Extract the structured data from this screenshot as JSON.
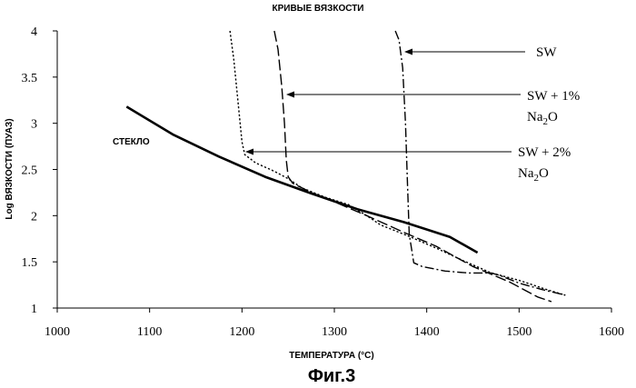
{
  "chart_data": {
    "type": "line",
    "title": "КРИВЫЕ ВЯЗКОСТИ",
    "xlabel": "ТЕМПЕРАТУРА (°C)",
    "ylabel": "Log ВЯЗКОСТИ (ПУАЗ)",
    "caption": "Фиг.3",
    "xlim": [
      1000,
      1600
    ],
    "ylim": [
      1,
      4
    ],
    "x_ticks": [
      1000,
      1100,
      1200,
      1300,
      1400,
      1500,
      1600
    ],
    "y_ticks": [
      1,
      1.5,
      2,
      2.5,
      3,
      3.5,
      4
    ],
    "x_tick_labels": [
      "1000",
      "1100",
      "1200",
      "1300",
      "1400",
      "1500",
      "1600"
    ],
    "y_tick_labels": [
      "1",
      "1.5",
      "2",
      "2.5",
      "3",
      "3.5",
      "4"
    ],
    "grid": false,
    "series": [
      {
        "name": "СТЕКЛО",
        "style": "solid",
        "points": [
          [
            1075,
            3.18
          ],
          [
            1125,
            2.88
          ],
          [
            1175,
            2.64
          ],
          [
            1225,
            2.42
          ],
          [
            1275,
            2.24
          ],
          [
            1325,
            2.07
          ],
          [
            1375,
            1.93
          ],
          [
            1425,
            1.77
          ],
          [
            1455,
            1.6
          ]
        ]
      },
      {
        "name": "SW",
        "style": "dashdot",
        "points": [
          [
            1366,
            4.0
          ],
          [
            1370,
            3.9
          ],
          [
            1374,
            3.6
          ],
          [
            1377,
            3.0
          ],
          [
            1379,
            2.4
          ],
          [
            1381,
            1.8
          ],
          [
            1386,
            1.49
          ],
          [
            1395,
            1.45
          ],
          [
            1420,
            1.4
          ],
          [
            1445,
            1.38
          ],
          [
            1470,
            1.38
          ],
          [
            1480,
            1.35
          ],
          [
            1500,
            1.27
          ],
          [
            1525,
            1.2
          ],
          [
            1550,
            1.14
          ]
        ]
      },
      {
        "name": "SW + 1% Na2O",
        "style": "dashed",
        "points": [
          [
            1235,
            4.0
          ],
          [
            1239,
            3.8
          ],
          [
            1243,
            3.4
          ],
          [
            1246,
            3.0
          ],
          [
            1248,
            2.6
          ],
          [
            1250,
            2.42
          ],
          [
            1255,
            2.35
          ],
          [
            1275,
            2.25
          ],
          [
            1300,
            2.15
          ],
          [
            1335,
            2.0
          ],
          [
            1375,
            1.82
          ],
          [
            1410,
            1.67
          ],
          [
            1450,
            1.45
          ],
          [
            1490,
            1.28
          ],
          [
            1520,
            1.12
          ],
          [
            1535,
            1.07
          ]
        ]
      },
      {
        "name": "SW + 2% Na2O",
        "style": "dotted",
        "points": [
          [
            1187,
            4.0
          ],
          [
            1191,
            3.7
          ],
          [
            1195,
            3.3
          ],
          [
            1198,
            3.0
          ],
          [
            1200,
            2.8
          ],
          [
            1203,
            2.66
          ],
          [
            1215,
            2.57
          ],
          [
            1235,
            2.48
          ],
          [
            1250,
            2.4
          ],
          [
            1265,
            2.3
          ],
          [
            1290,
            2.2
          ],
          [
            1315,
            2.12
          ],
          [
            1335,
            2.0
          ],
          [
            1350,
            1.9
          ],
          [
            1380,
            1.78
          ],
          [
            1410,
            1.65
          ],
          [
            1440,
            1.51
          ],
          [
            1470,
            1.38
          ],
          [
            1500,
            1.3
          ],
          [
            1530,
            1.2
          ],
          [
            1550,
            1.14
          ]
        ]
      }
    ],
    "annotations": [
      {
        "id": "sw",
        "text": "SW",
        "xy": [
          1373,
          3.76
        ]
      },
      {
        "id": "sw1",
        "line1": "SW + 1%",
        "line2_main": "Na",
        "line2_sub": "2",
        "line2_end": "O",
        "xy": [
          1248,
          3.32
        ]
      },
      {
        "id": "sw2",
        "line1": "SW + 2%",
        "line2_main": "Na",
        "line2_sub": "2",
        "line2_end": "O",
        "xy": [
          1205,
          2.69
        ]
      },
      {
        "id": "glass",
        "text": "СТЕКЛО"
      }
    ]
  }
}
